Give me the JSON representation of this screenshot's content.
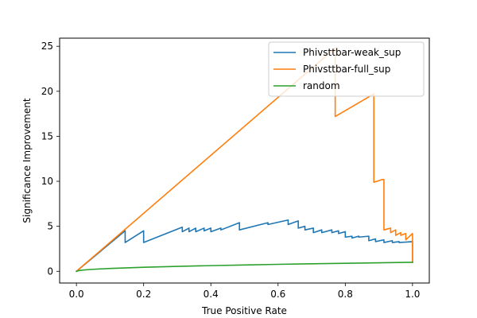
{
  "chart_data": {
    "type": "line",
    "xlabel": "True Positive Rate",
    "ylabel": "Significance Improvement",
    "xlim": [
      -0.05,
      1.05
    ],
    "ylim": [
      -1.3,
      25.9
    ],
    "xticks": [
      0.0,
      0.2,
      0.4,
      0.6,
      0.8,
      1.0
    ],
    "xtick_labels": [
      "0.0",
      "0.2",
      "0.4",
      "0.6",
      "0.8",
      "1.0"
    ],
    "yticks": [
      0,
      5,
      10,
      15,
      20,
      25
    ],
    "ytick_labels": [
      "0",
      "5",
      "10",
      "15",
      "20",
      "25"
    ],
    "grid": false,
    "legend_position": "top-right",
    "series": [
      {
        "name": "Phivsttbar-weak_sup",
        "color": "#1f77b4",
        "x": [
          0.0,
          0.145,
          0.145,
          0.2,
          0.2,
          0.315,
          0.315,
          0.335,
          0.335,
          0.355,
          0.355,
          0.38,
          0.38,
          0.4,
          0.4,
          0.43,
          0.43,
          0.485,
          0.485,
          0.57,
          0.57,
          0.63,
          0.63,
          0.66,
          0.66,
          0.68,
          0.68,
          0.705,
          0.705,
          0.73,
          0.73,
          0.76,
          0.76,
          0.78,
          0.78,
          0.8,
          0.8,
          0.82,
          0.82,
          0.84,
          0.84,
          0.87,
          0.87,
          0.89,
          0.89,
          0.915,
          0.915,
          0.94,
          0.94,
          0.96,
          0.96,
          1.0,
          1.0
        ],
        "y": [
          0.0,
          4.5,
          3.2,
          4.5,
          3.2,
          4.9,
          4.4,
          4.8,
          4.4,
          4.8,
          4.4,
          4.8,
          4.5,
          4.8,
          4.4,
          4.8,
          4.6,
          5.4,
          4.6,
          5.4,
          5.2,
          5.7,
          5.2,
          5.6,
          4.8,
          5.0,
          4.6,
          4.8,
          4.3,
          4.6,
          4.3,
          4.6,
          4.3,
          4.5,
          4.2,
          4.4,
          3.8,
          3.9,
          3.7,
          3.9,
          3.8,
          3.9,
          3.4,
          3.6,
          3.3,
          3.5,
          3.2,
          3.4,
          3.2,
          3.3,
          3.2,
          3.3,
          1.0
        ]
      },
      {
        "name": "Phivsttbar-full_sup",
        "color": "#ff7f0e",
        "x": [
          0.0,
          0.77,
          0.77,
          0.885,
          0.885,
          0.895,
          0.895,
          0.91,
          0.91,
          0.915,
          0.915,
          0.935,
          0.935,
          0.95,
          0.95,
          0.965,
          0.965,
          0.98,
          0.98,
          1.0,
          1.0
        ],
        "y": [
          0.0,
          24.8,
          17.2,
          19.7,
          9.9,
          10.0,
          10.0,
          10.2,
          10.2,
          10.2,
          4.6,
          4.8,
          4.3,
          4.6,
          4.0,
          4.3,
          4.0,
          4.2,
          3.5,
          4.2,
          1.0
        ]
      },
      {
        "name": "random",
        "color": "#2ca02c",
        "x": [
          0.0,
          0.01,
          0.02,
          0.04,
          0.06,
          0.1,
          0.15,
          0.2,
          0.3,
          0.4,
          0.5,
          0.6,
          0.7,
          0.8,
          0.9,
          1.0
        ],
        "y": [
          0.0,
          0.1,
          0.14,
          0.2,
          0.245,
          0.316,
          0.387,
          0.447,
          0.548,
          0.632,
          0.707,
          0.775,
          0.837,
          0.894,
          0.949,
          1.0
        ]
      }
    ]
  }
}
